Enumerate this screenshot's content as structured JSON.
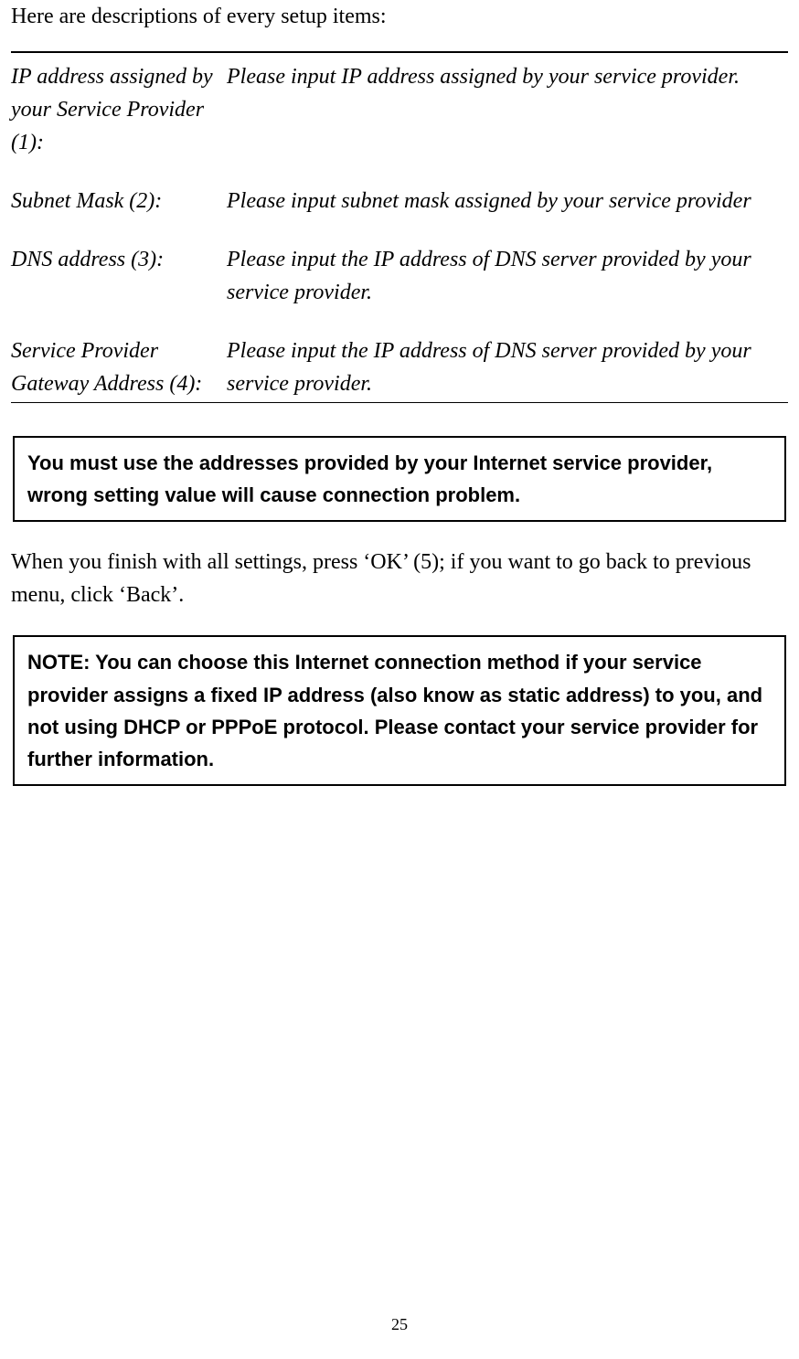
{
  "intro": "Here are descriptions of every setup items:",
  "definitions": [
    {
      "term": "IP address assigned by your Service Provider (1):",
      "desc": "Please input IP address assigned by your service provider."
    },
    {
      "term": "Subnet Mask (2):",
      "desc": "Please input subnet mask assigned by your service provider"
    },
    {
      "term": "DNS address (3):",
      "desc": "Please input the IP address of DNS server provided by your service provider."
    },
    {
      "term": "Service Provider Gateway Address (4):",
      "desc": "Please input the IP address of DNS server provided by your service provider."
    }
  ],
  "warning": "You must use the addresses provided by your Internet service provider, wrong setting value will cause connection problem.",
  "paragraph": "When you finish with all settings, press ‘OK’ (5); if you want to go back to previous menu, click ‘Back’.",
  "note": "NOTE: You can choose this Internet connection method if your service provider assigns a fixed IP address (also know as static address) to you, and not using DHCP or PPPoE protocol. Please contact your service provider for further information.",
  "page_number": "25"
}
